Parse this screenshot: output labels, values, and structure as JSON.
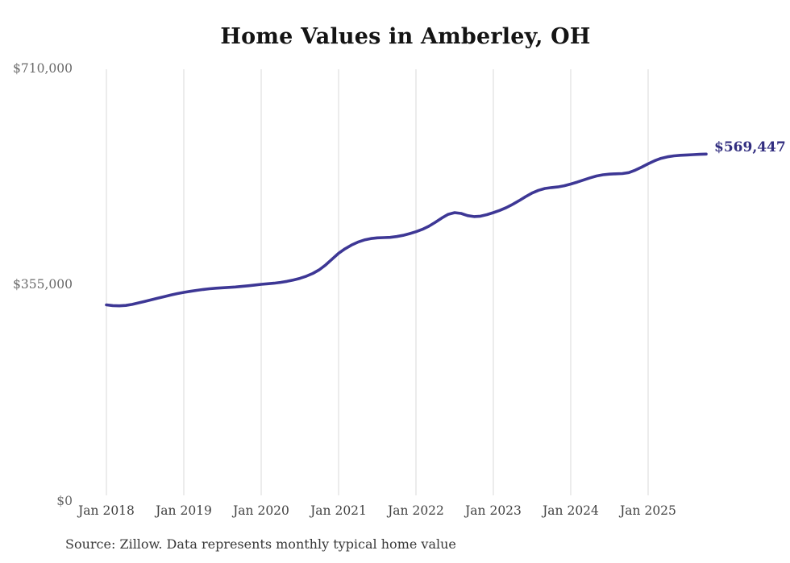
{
  "title": "Home Values in Amberley, OH",
  "source_note": "Source: Zillow. Data represents monthly typical home value",
  "annotation": {
    "label": "$569,447"
  },
  "y_axis": {
    "labels": [
      "$710,000",
      "$355,000",
      "$0"
    ]
  },
  "colors": {
    "line": "#3d3795",
    "annotation": "#322e80",
    "grid": "#d8d8d8",
    "title": "#141414",
    "axis_y": "#6a6a6a",
    "axis_x": "#414141",
    "source": "#383838"
  },
  "chart_data": {
    "type": "line",
    "title": "Home Values in Amberley, OH",
    "ylabel": "",
    "xlabel": "",
    "unit": "USD",
    "ylim": [
      0,
      710000
    ],
    "y_ticks": [
      0,
      355000,
      710000
    ],
    "y_tick_labels": [
      "$0",
      "$355,000",
      "$710,000"
    ],
    "grid": "vertical-only",
    "x_tick_labels": [
      "Jan 2018",
      "Jan 2019",
      "Jan 2020",
      "Jan 2021",
      "Jan 2022",
      "Jan 2023",
      "Jan 2024",
      "Jan 2025"
    ],
    "final_value": 569447,
    "final_label": "$569,447",
    "x": [
      "2018-01",
      "2018-02",
      "2018-03",
      "2018-04",
      "2018-05",
      "2018-06",
      "2018-07",
      "2018-08",
      "2018-09",
      "2018-10",
      "2018-11",
      "2018-12",
      "2019-01",
      "2019-02",
      "2019-03",
      "2019-04",
      "2019-05",
      "2019-06",
      "2019-07",
      "2019-08",
      "2019-09",
      "2019-10",
      "2019-11",
      "2019-12",
      "2020-01",
      "2020-02",
      "2020-03",
      "2020-04",
      "2020-05",
      "2020-06",
      "2020-07",
      "2020-08",
      "2020-09",
      "2020-10",
      "2020-11",
      "2020-12",
      "2021-01",
      "2021-02",
      "2021-03",
      "2021-04",
      "2021-05",
      "2021-06",
      "2021-07",
      "2021-08",
      "2021-09",
      "2021-10",
      "2021-11",
      "2021-12",
      "2022-01",
      "2022-02",
      "2022-03",
      "2022-04",
      "2022-05",
      "2022-06",
      "2022-07",
      "2022-08",
      "2022-09",
      "2022-10",
      "2022-11",
      "2022-12",
      "2023-01",
      "2023-02",
      "2023-03",
      "2023-04",
      "2023-05",
      "2023-06",
      "2023-07",
      "2023-08",
      "2023-09",
      "2023-10",
      "2023-11",
      "2023-12",
      "2024-01",
      "2024-02",
      "2024-03",
      "2024-04",
      "2024-05",
      "2024-06",
      "2024-07",
      "2024-08",
      "2024-09",
      "2024-10",
      "2024-11",
      "2024-12",
      "2025-01",
      "2025-02",
      "2025-03",
      "2025-04",
      "2025-05",
      "2025-06",
      "2025-07",
      "2025-08",
      "2025-09",
      "2025-10"
    ],
    "values": [
      322000,
      320700,
      320300,
      321000,
      322800,
      325200,
      327800,
      330400,
      333000,
      335600,
      338200,
      340500,
      342500,
      344200,
      345800,
      347200,
      348400,
      349300,
      350000,
      350600,
      351300,
      352200,
      353300,
      354500,
      355700,
      356600,
      357500,
      358800,
      360500,
      362800,
      365500,
      369000,
      373500,
      379500,
      387500,
      397000,
      406500,
      414000,
      420000,
      425000,
      428500,
      430800,
      432000,
      432300,
      432800,
      434000,
      436000,
      438800,
      442000,
      446000,
      451000,
      457500,
      464500,
      470500,
      473300,
      472000,
      468500,
      466800,
      467500,
      470000,
      473300,
      477000,
      481500,
      487000,
      493000,
      499500,
      505500,
      510000,
      513000,
      514500,
      515500,
      517500,
      520300,
      523500,
      527000,
      530500,
      533500,
      535500,
      536500,
      537000,
      537500,
      539000,
      543000,
      548000,
      553500,
      558500,
      562500,
      565000,
      566500,
      567500,
      568000,
      568500,
      569000,
      569447
    ]
  }
}
